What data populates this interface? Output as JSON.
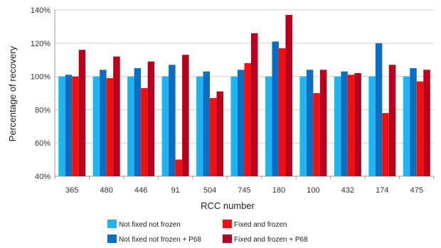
{
  "chart_data": {
    "type": "bar",
    "title": "",
    "xlabel": "RCC number",
    "ylabel": "Percentage of recovery",
    "ylim": [
      40,
      140
    ],
    "yticks": [
      40,
      60,
      80,
      100,
      120,
      140
    ],
    "ytick_suffix": "%",
    "grid": true,
    "legend_position": "bottom",
    "categories": [
      "365",
      "480",
      "446",
      "91",
      "504",
      "745",
      "180",
      "100",
      "432",
      "174",
      "475"
    ],
    "series": [
      {
        "name": "Not fixed not frozen",
        "color": "#1fb4ef",
        "values": [
          100,
          100,
          100,
          100,
          100,
          100,
          100,
          100,
          100,
          100,
          100
        ]
      },
      {
        "name": "Not fixed not frozen + P68",
        "color": "#0a6fc2",
        "values": [
          101,
          104,
          105,
          107,
          103,
          104,
          121,
          104,
          103,
          120,
          105
        ]
      },
      {
        "name": "Fixed  and frozen",
        "color": "#f01010",
        "values": [
          100,
          99,
          93,
          50,
          87,
          108,
          117,
          90,
          101,
          78,
          97
        ]
      },
      {
        "name": "Fixed and frozen + P68",
        "color": "#b8001e",
        "values": [
          116,
          112,
          109,
          113,
          91,
          126,
          137,
          104,
          102,
          107,
          104
        ]
      }
    ]
  }
}
